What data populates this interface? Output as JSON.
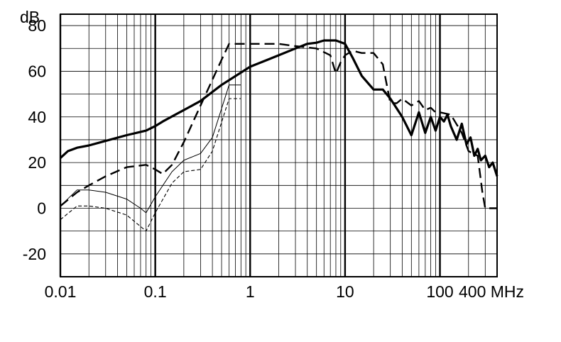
{
  "chart_data": {
    "type": "line",
    "title": "",
    "xlabel": "",
    "ylabel": "",
    "x_scale": "log",
    "x_unit": "MHz",
    "y_unit": "dB",
    "xlim": [
      0.01,
      400
    ],
    "ylim": [
      -30,
      85
    ],
    "grid": true,
    "x_ticks": [
      {
        "value": 0.01,
        "label": "0.01"
      },
      {
        "value": 0.1,
        "label": "0.1"
      },
      {
        "value": 1,
        "label": "1"
      },
      {
        "value": 10,
        "label": "10"
      },
      {
        "value": 100,
        "label": "100"
      },
      {
        "value": 400,
        "label": "400 MHz"
      }
    ],
    "y_ticks": [
      {
        "value": -20,
        "label": "-20"
      },
      {
        "value": 0,
        "label": "0"
      },
      {
        "value": 20,
        "label": "20"
      },
      {
        "value": 40,
        "label": "40"
      },
      {
        "value": 60,
        "label": "60"
      },
      {
        "value": 80,
        "label": "80"
      }
    ],
    "y_unit_label": "dB",
    "series": [
      {
        "style": "thick-solid",
        "x": [
          0.01,
          0.012,
          0.015,
          0.02,
          0.03,
          0.05,
          0.08,
          0.1,
          0.12,
          0.2,
          0.3,
          0.5,
          1,
          2,
          3,
          4,
          5,
          6,
          8,
          10,
          12,
          15,
          20,
          25,
          30,
          40,
          50,
          60,
          70,
          80,
          90,
          100,
          110,
          120,
          130,
          150,
          170,
          190,
          210,
          230,
          250,
          270,
          300,
          330,
          360,
          400
        ],
        "y": [
          22,
          25,
          26.5,
          27.5,
          29.5,
          32,
          34,
          36,
          38,
          43,
          47,
          54,
          62,
          67,
          70,
          72,
          72.5,
          73.5,
          73.5,
          72,
          66,
          58,
          52,
          52,
          48,
          40,
          32,
          42,
          33,
          40,
          34,
          40,
          38,
          41,
          36,
          30,
          37,
          28,
          31,
          23,
          26,
          21,
          23,
          18,
          20,
          14
        ]
      },
      {
        "style": "thick-dashed",
        "x": [
          0.01,
          0.015,
          0.02,
          0.03,
          0.05,
          0.08,
          0.1,
          0.12,
          0.15,
          0.2,
          0.3,
          0.5,
          0.6,
          1,
          2,
          3,
          5,
          7,
          8,
          9,
          10,
          12,
          15,
          20,
          25,
          30,
          35,
          40,
          50,
          60,
          70,
          80,
          90,
          100,
          130,
          170,
          200,
          250,
          280,
          300,
          400
        ],
        "y": [
          1,
          7,
          10,
          14,
          18,
          19,
          17,
          15,
          19,
          29,
          45,
          65,
          72,
          72,
          72,
          71,
          70,
          67,
          59,
          64,
          67,
          69,
          68,
          68,
          63,
          46,
          46,
          48,
          45,
          47,
          43,
          44,
          42,
          42,
          41,
          33,
          25,
          23,
          7,
          0,
          0
        ]
      },
      {
        "style": "thin-solid",
        "x": [
          0.01,
          0.015,
          0.02,
          0.03,
          0.05,
          0.07,
          0.08,
          0.1,
          0.15,
          0.2,
          0.3,
          0.4,
          0.6,
          0.8
        ],
        "y": [
          1,
          8,
          8,
          7,
          4,
          0,
          -2,
          5,
          16,
          21,
          24,
          31,
          54,
          54
        ]
      },
      {
        "style": "thin-dashed",
        "x": [
          0.01,
          0.015,
          0.02,
          0.03,
          0.05,
          0.07,
          0.08,
          0.1,
          0.15,
          0.2,
          0.3,
          0.4,
          0.6,
          0.8
        ],
        "y": [
          -5,
          1,
          1,
          0,
          -3,
          -8,
          -10,
          -2,
          11,
          16,
          17,
          25,
          48,
          48
        ]
      }
    ]
  }
}
